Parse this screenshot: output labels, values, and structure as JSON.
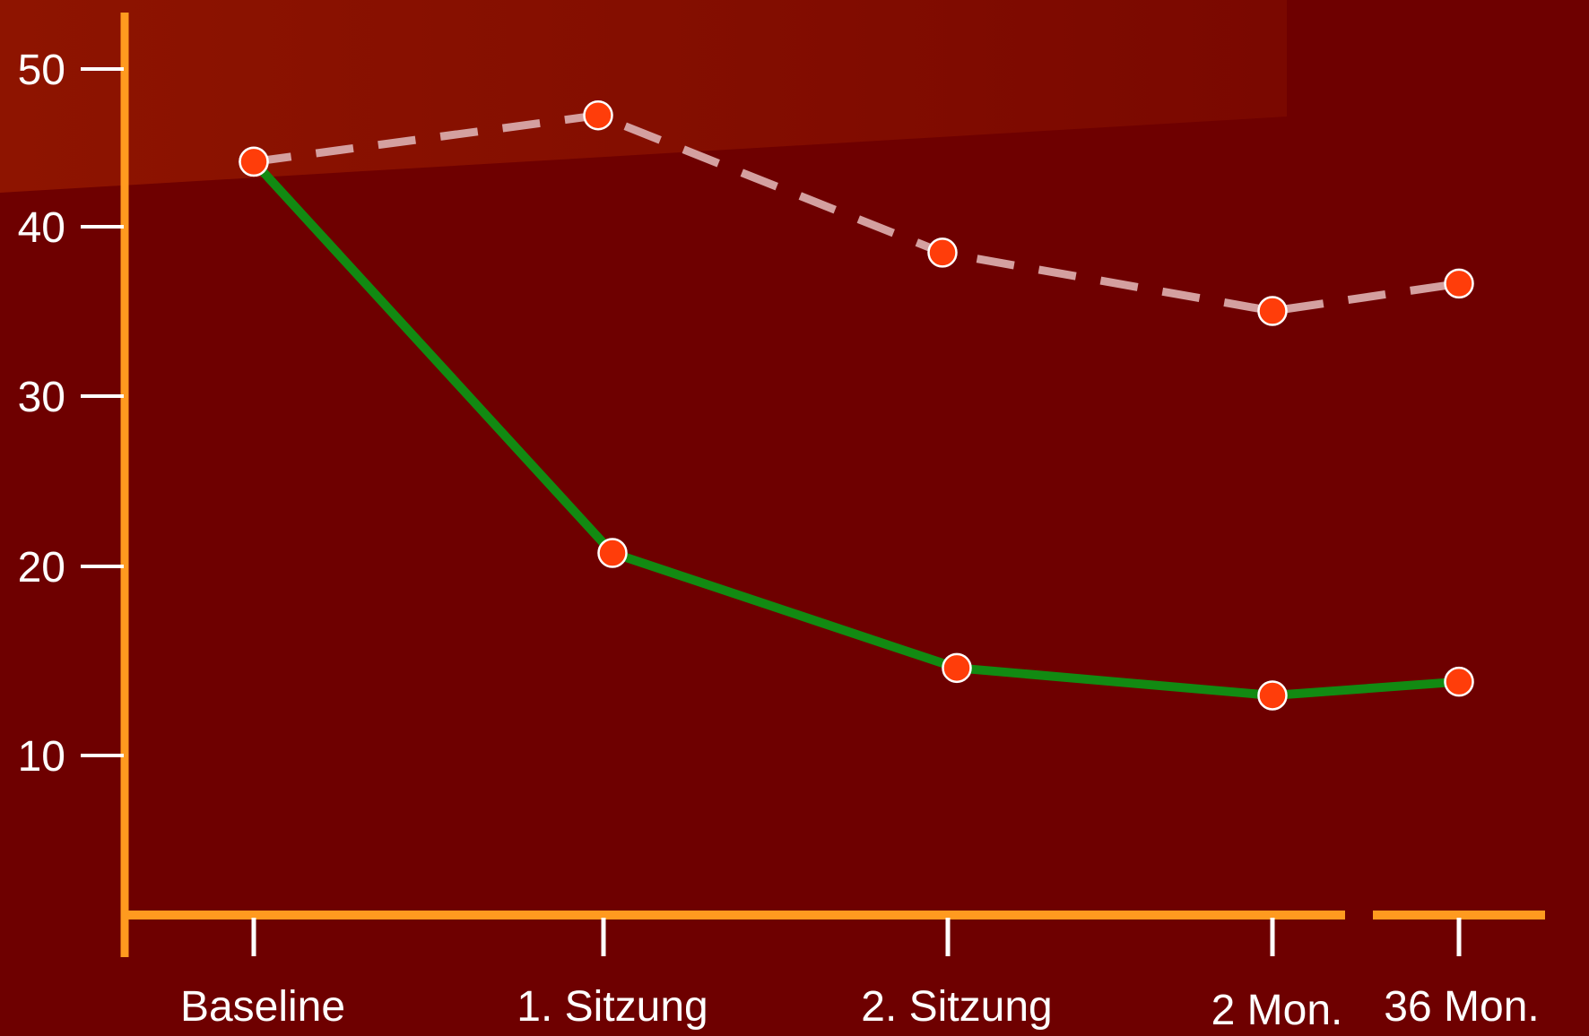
{
  "chart_data": {
    "type": "line",
    "categories": [
      "Baseline",
      "1. Sitzung",
      "2. Sitzung",
      "2 Mon.",
      "36 Mon."
    ],
    "y_ticks": [
      "50",
      "40",
      "30",
      "20",
      "10"
    ],
    "ylim": [
      0,
      53
    ],
    "grid": false,
    "series": [
      {
        "style": "dashed",
        "color": "#d4a0a0",
        "values": [
          44.6,
          47.3,
          39.3,
          35.9,
          37.5
        ]
      },
      {
        "style": "solid",
        "color": "#128a12",
        "values": [
          44.6,
          21.8,
          15.1,
          13.5,
          14.3
        ]
      }
    ],
    "colors": {
      "background": "#6e0000",
      "highlight": "#8a1000",
      "axis": "#ff9a1f",
      "marker_fill": "#ff3d0a",
      "marker_stroke": "#ffffff",
      "text": "#ffffff"
    }
  }
}
